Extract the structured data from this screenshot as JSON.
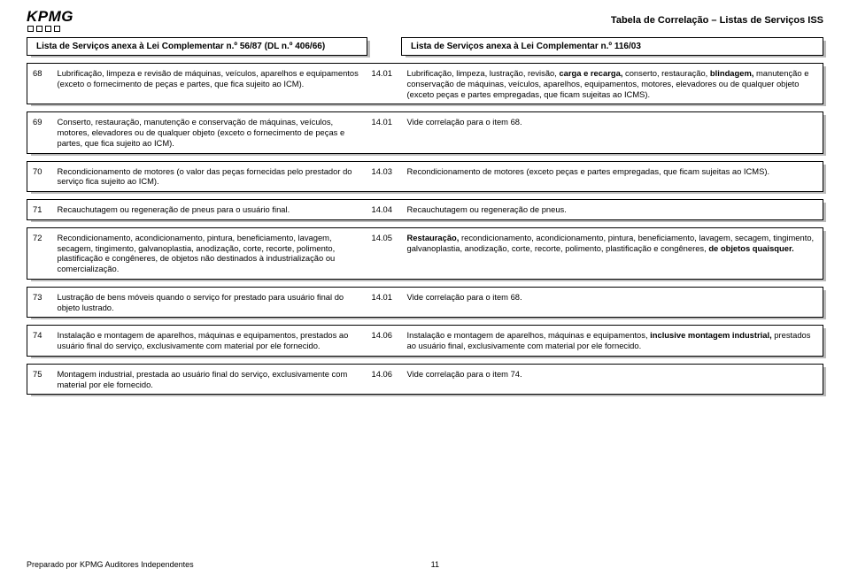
{
  "header": {
    "logo_text": "KPMG",
    "doc_title": "Tabela de Correlação – Listas de Serviços ISS",
    "col_left": "Lista de Serviços anexa à Lei Complementar n.º 56/87 (DL n.º 406/66)",
    "col_right": "Lista de Serviços anexa à Lei Complementar n.º 116/03"
  },
  "rows": [
    {
      "ln": "68",
      "lt_pre": "Lubrificação, limpeza e revisão de máquinas, veículos, aparelhos e equipamentos (exceto o fornecimento de peças e partes, que fica sujeito ao ICM).",
      "rn": "14.01",
      "rt_pre": "Lubrificação, limpeza, lustração, revisão, ",
      "rt_b1": "carga e recarga,",
      "rt_mid1": " conserto, restauração, ",
      "rt_b2": "blindagem,",
      "rt_post": " manutenção e conservação de máquinas, veículos, aparelhos, equipamentos, motores, elevadores ou de qualquer objeto (exceto peças e partes empregadas, que ficam sujeitas ao ICMS)."
    },
    {
      "ln": "69",
      "lt_pre": "Conserto, restauração, manutenção e conservação de máquinas, veículos, motores, elevadores ou de qualquer objeto (exceto o fornecimento de peças e partes, que fica sujeito ao ICM).",
      "rn": "14.01",
      "rt_pre": "Vide correlação para o item 68."
    },
    {
      "ln": "70",
      "lt_pre": "Recondicionamento de motores (o valor das peças fornecidas pelo prestador do serviço fica sujeito ao ICM).",
      "rn": "14.03",
      "rt_pre": "Recondicionamento de motores (exceto peças e partes empregadas, que ficam sujeitas ao ICMS)."
    },
    {
      "ln": "71",
      "lt_pre": "Recauchutagem ou regeneração de pneus para o usuário final.",
      "rn": "14.04",
      "rt_pre": "Recauchutagem ou regeneração de pneus."
    },
    {
      "ln": "72",
      "lt_pre": "Recondicionamento, acondicionamento, pintura, beneficiamento, lavagem, secagem, tingimento, galvanoplastia, anodização, corte, recorte, polimento, plastificação e congêneres, de objetos não destinados à industrialização ou comercialização.",
      "rn": "14.05",
      "rt_b1": "Restauração,",
      "rt_mid1": " recondicionamento, acondicionamento, pintura, beneficiamento, lavagem, secagem, tingimento, galvanoplastia, anodização, corte, recorte, polimento, plastificação e congêneres, ",
      "rt_b2": "de objetos quaisquer."
    },
    {
      "ln": "73",
      "lt_pre": "Lustração de bens móveis quando o serviço for prestado para usuário final do objeto lustrado.",
      "rn": "14.01",
      "rt_pre": "Vide correlação para o item 68."
    },
    {
      "ln": "74",
      "lt_pre": "Instalação e montagem de aparelhos, máquinas e equipamentos, prestados ao usuário final do serviço, exclusivamente com material por ele fornecido.",
      "rn": "14.06",
      "rt_pre": "Instalação e montagem de aparelhos, máquinas e equipamentos, ",
      "rt_b1": "inclusive montagem industrial,",
      "rt_post": " prestados ao usuário final, exclusivamente com material por ele fornecido."
    },
    {
      "ln": "75",
      "lt_pre": "Montagem industrial, prestada ao usuário final do serviço, exclusivamente com material por ele fornecido.",
      "rn": "14.06",
      "rt_pre": "Vide correlação para o item 74."
    }
  ],
  "footer": {
    "prepared_by": "Preparado por KPMG Auditores Independentes",
    "page_number": "11"
  }
}
